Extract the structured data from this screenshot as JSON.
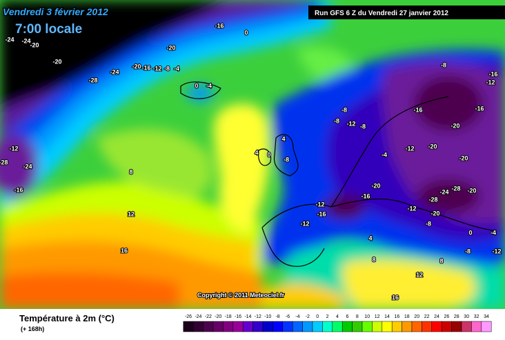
{
  "map": {
    "title": "Vendredi 3 février 2012",
    "time": "7:00 locale",
    "run": "Run GFS 6 Z du Vendredi 27 janvier 2012",
    "copyright": "Copyright © 2011 Meteociel.fr",
    "variable": "Température à 2m (°C)",
    "lead": "(+ 168h)",
    "contour_labels": [
      "-24",
      "-24",
      "-20",
      "-20",
      "-20",
      "-16",
      "-12",
      "-8",
      "-4",
      "-28",
      "-24",
      "-20",
      "-16",
      "0",
      "-12",
      "-28",
      "-16",
      "-24",
      "-8",
      "-16",
      "-12",
      "-16",
      "-16",
      "-20",
      "-20",
      "-12",
      "-8",
      "-8",
      "-12",
      "-8",
      "-4",
      "-20",
      "-28",
      "-24",
      "-28",
      "-20",
      "-20",
      "-16",
      "-12",
      "-16",
      "-12",
      "-12",
      "-20",
      "-8",
      "-4",
      "0",
      "-12",
      "-8",
      "4",
      "4",
      "0",
      "-8",
      "8",
      "12",
      "16",
      "8",
      "12",
      "16",
      "8",
      "0",
      "-4",
      "4"
    ],
    "scale": {
      "ticks": [
        -26,
        -24,
        -22,
        -20,
        -18,
        -16,
        -14,
        -12,
        -10,
        -8,
        -6,
        -4,
        -2,
        0,
        2,
        4,
        6,
        8,
        10,
        12,
        14,
        16,
        18,
        20,
        22,
        24,
        26,
        28,
        30,
        32,
        34
      ],
      "colors": [
        "#1a001a",
        "#330033",
        "#4d004d",
        "#660066",
        "#800080",
        "#990099",
        "#6600cc",
        "#3300cc",
        "#0000cc",
        "#0000ff",
        "#0033ff",
        "#0066ff",
        "#0099ff",
        "#00ccff",
        "#00ffcc",
        "#00ff66",
        "#00cc00",
        "#33cc00",
        "#66ff00",
        "#ccff00",
        "#ffff00",
        "#ffcc00",
        "#ff9900",
        "#ff6600",
        "#ff3300",
        "#ff0000",
        "#cc0000",
        "#990000",
        "#cc3366",
        "#ff66cc",
        "#ff99ff"
      ]
    }
  }
}
